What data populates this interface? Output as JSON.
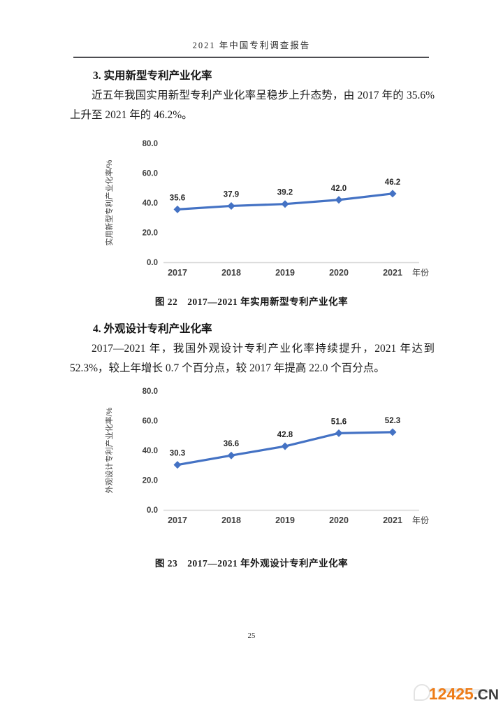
{
  "page": {
    "header_title": "2021 年中国专利调查报告",
    "page_number": "25"
  },
  "section3": {
    "heading": "3. 实用新型专利产业化率",
    "paragraph": "近五年我国实用新型专利产业化率呈稳步上升态势，由 2017 年的 35.6%上升至 2021 年的 46.2%。"
  },
  "section4": {
    "heading": "4. 外观设计专利产业化率",
    "paragraph": "2017—2021 年，我国外观设计专利产业化率持续提升，2021 年达到 52.3%，较上年增长 0.7 个百分点，较 2017 年提高 22.0 个百分点。"
  },
  "chart_data": [
    {
      "type": "line",
      "categories": [
        "2017",
        "2018",
        "2019",
        "2020",
        "2021"
      ],
      "values": [
        35.6,
        37.9,
        39.2,
        42.0,
        46.2
      ],
      "value_labels": [
        "35.6",
        "37.9",
        "39.2",
        "42.0",
        "46.2"
      ],
      "title": "",
      "xlabel": "年份",
      "ylabel": "实用新型专利产业化率/%",
      "yticks": [
        "0.0",
        "20.0",
        "40.0",
        "60.0",
        "80.0"
      ],
      "ytick_values": [
        0,
        20,
        40,
        60,
        80
      ],
      "ylim": [
        0,
        80
      ],
      "grid": "off",
      "legend": "none",
      "line_color": "#4472c4",
      "marker": "diamond",
      "caption": "图 22　2017—2021 年实用新型专利产业化率"
    },
    {
      "type": "line",
      "categories": [
        "2017",
        "2018",
        "2019",
        "2020",
        "2021"
      ],
      "values": [
        30.3,
        36.6,
        42.8,
        51.6,
        52.3
      ],
      "value_labels": [
        "30.3",
        "36.6",
        "42.8",
        "51.6",
        "52.3"
      ],
      "title": "",
      "xlabel": "年份",
      "ylabel": "外观设计专利产业化率/%",
      "yticks": [
        "0.0",
        "20.0",
        "40.0",
        "60.0",
        "80.0"
      ],
      "ytick_values": [
        0,
        20,
        40,
        60,
        80
      ],
      "ylim": [
        0,
        80
      ],
      "grid": "off",
      "legend": "none",
      "line_color": "#4472c4",
      "marker": "diamond",
      "caption": "图 23　2017—2021 年外观设计专利产业化率"
    }
  ],
  "watermark": {
    "number": "12425",
    "suffix": ".CN",
    "number_color": "#ee7c17",
    "suffix_color": "#3d3d3d"
  }
}
